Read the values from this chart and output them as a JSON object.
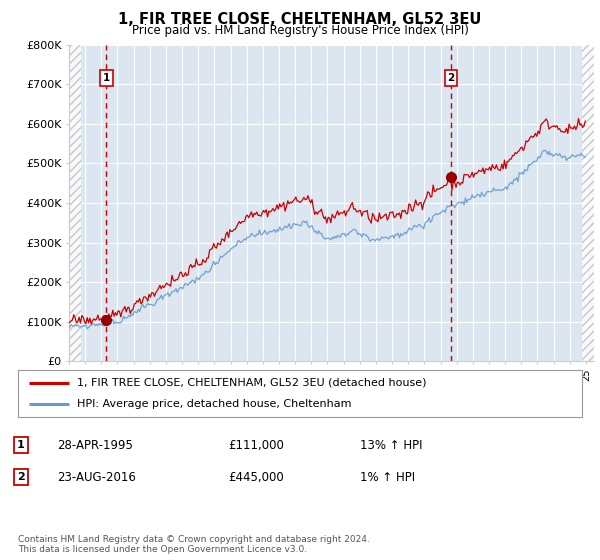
{
  "title": "1, FIR TREE CLOSE, CHELTENHAM, GL52 3EU",
  "subtitle": "Price paid vs. HM Land Registry's House Price Index (HPI)",
  "legend_line1": "1, FIR TREE CLOSE, CHELTENHAM, GL52 3EU (detached house)",
  "legend_line2": "HPI: Average price, detached house, Cheltenham",
  "annotation1": {
    "num": "1",
    "date": "28-APR-1995",
    "price": "£111,000",
    "hpi": "13% ↑ HPI",
    "x_year": 1995.32
  },
  "annotation2": {
    "num": "2",
    "date": "23-AUG-2016",
    "price": "£445,000",
    "hpi": "1% ↑ HPI",
    "x_year": 2016.64
  },
  "footer": "Contains HM Land Registry data © Crown copyright and database right 2024.\nThis data is licensed under the Open Government Licence v3.0.",
  "ylim": [
    0,
    800000
  ],
  "yticks": [
    0,
    100000,
    200000,
    300000,
    400000,
    500000,
    600000,
    700000,
    800000
  ],
  "ytick_labels": [
    "£0",
    "£100K",
    "£200K",
    "£300K",
    "£400K",
    "£500K",
    "£600K",
    "£700K",
    "£800K"
  ],
  "hatch_color": "#aaaaaa",
  "plot_bg": "#dce6f1",
  "grid_color": "#ffffff",
  "red_line_color": "#cc0000",
  "blue_line_color": "#6699cc",
  "vline_color": "#cc0000",
  "marker_color": "#990000",
  "xlim_left": 1993.0,
  "xlim_right": 2025.5,
  "hatch_left_end": 1993.75,
  "hatch_right_start": 2024.75
}
